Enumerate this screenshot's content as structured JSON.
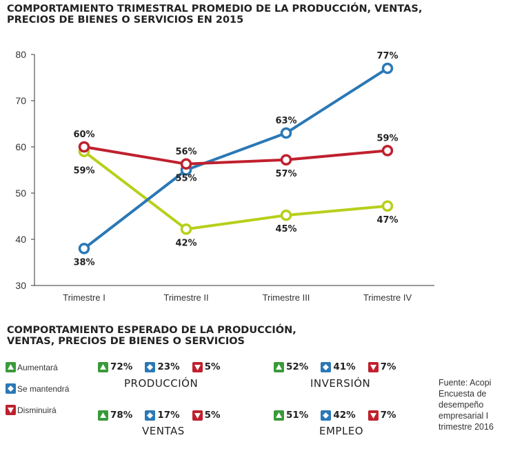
{
  "title_top": [
    "COMPORTAMIENTO TRIMESTRAL PROMEDIO DE LA PRODUCCIÓN, VENTAS,",
    "PRECIOS DE BIENES O SERVICIOS EN 2015"
  ],
  "title_bottom": [
    "COMPORTAMIENTO ESPERADO DE LA PRODUCCIÓN,",
    "VENTAS, PRECIOS DE BIENES O SERVICIOS"
  ],
  "colors": {
    "blue": "#2a78b6",
    "red": "#c0202e",
    "green": "#b7cf1a",
    "up_green": "#3a9a3a"
  },
  "chart_data": {
    "type": "line",
    "categories": [
      "Trimestre I",
      "Trimestre II",
      "Trimestre III",
      "Trimestre IV"
    ],
    "ylim": [
      30,
      80
    ],
    "yticks": [
      30,
      40,
      50,
      60,
      70,
      80
    ],
    "series": [
      {
        "color": "#2a78b6",
        "values": [
          38,
          55,
          63,
          77
        ],
        "labels": [
          "38%",
          "55%",
          "63%",
          "77%"
        ]
      },
      {
        "color": "#c0202e",
        "values": [
          60,
          56.3,
          57.2,
          59.2
        ],
        "labels": [
          "60%",
          "56%",
          "57%",
          "59%"
        ]
      },
      {
        "color": "#b7cf1a",
        "values": [
          59,
          42.2,
          45.2,
          47.2
        ],
        "labels": [
          "59%",
          "42%",
          "45%",
          "47%"
        ]
      }
    ]
  },
  "legend": {
    "up": "Aumentará",
    "same": "Se mantendrá",
    "down": "Disminuirá"
  },
  "groups": {
    "produccion": {
      "name": "PRODUCCIÓN",
      "up": "72%",
      "same": "23%",
      "down": "5%"
    },
    "inversion": {
      "name": "INVERSIÓN",
      "up": "52%",
      "same": "41%",
      "down": "7%"
    },
    "ventas": {
      "name": "VENTAS",
      "up": "78%",
      "same": "17%",
      "down": "5%"
    },
    "empleo": {
      "name": "EMPLEO",
      "up": "51%",
      "same": "42%",
      "down": "7%"
    }
  },
  "source": [
    "Fuente: Acopi",
    "Encuesta de",
    "desempeño",
    "empresarial I",
    "trimestre 2016"
  ]
}
